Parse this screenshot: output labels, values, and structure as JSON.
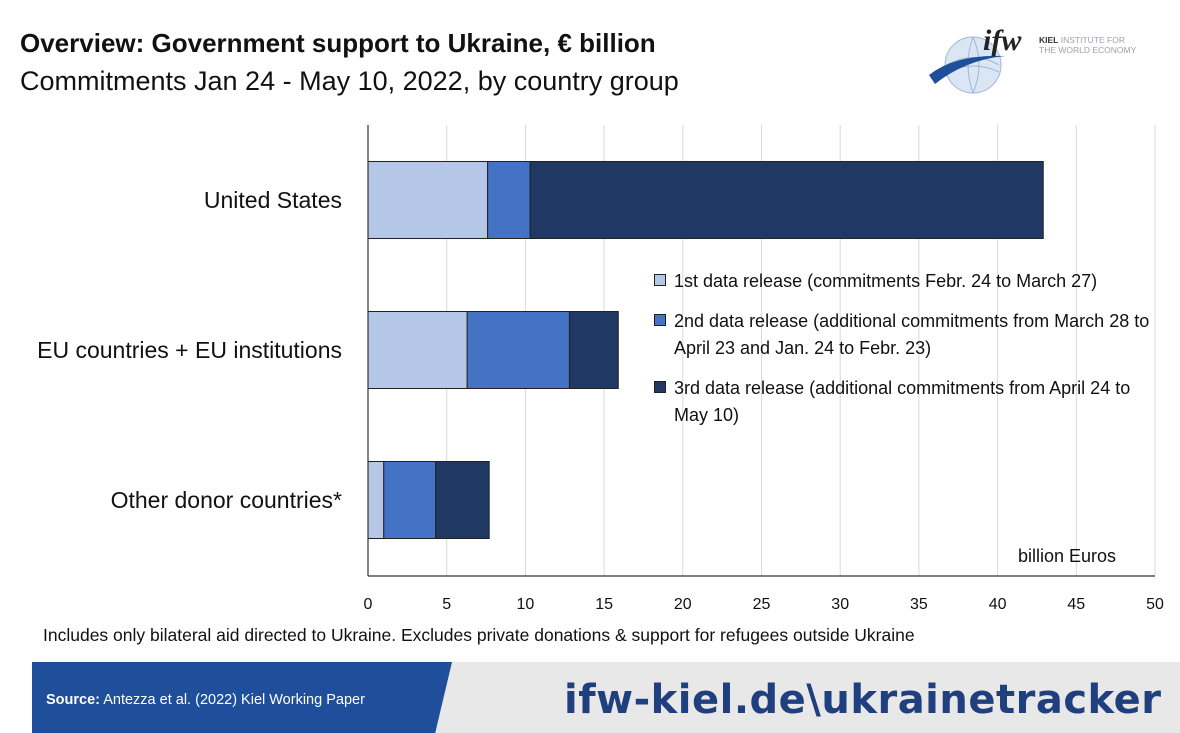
{
  "header": {
    "title": "Overview: Government support to Ukraine, € billion",
    "subtitle": "Commitments Jan 24 - May 10, 2022, by country group"
  },
  "logo": {
    "mark": "ifw",
    "line1": "KIEL INSTITUTE FOR",
    "line2": "THE WORLD ECONOMY",
    "line1_bold": "KIEL",
    "line1_rest": " INSTITUTE FOR"
  },
  "chart_data": {
    "type": "bar",
    "orientation": "horizontal",
    "stacked": true,
    "categories": [
      "United States",
      "EU countries + EU institutions",
      "Other donor countries*"
    ],
    "series": [
      {
        "name": "1st data release (commitments Febr. 24 to March 27)",
        "color": "#b4c7e7",
        "values": [
          7.6,
          6.3,
          1.0
        ]
      },
      {
        "name": "2nd data release (additional commitments from March 28 to April 23 and Jan. 24 to Febr. 23)",
        "color": "#4472c4",
        "values": [
          2.7,
          6.5,
          3.3
        ]
      },
      {
        "name": "3rd data release (additional commitments from April 24 to May 10)",
        "color": "#203864",
        "values": [
          32.6,
          3.1,
          3.4
        ]
      }
    ],
    "xlim": [
      0,
      50
    ],
    "xticks": [
      0,
      5,
      10,
      15,
      20,
      25,
      30,
      35,
      40,
      45,
      50
    ],
    "unit_label": "billion Euros",
    "grid": true,
    "legend_position": "right"
  },
  "footnote": "Includes only bilateral aid directed to Ukraine. Excludes private donations & support for refugees  outside Ukraine",
  "footer": {
    "source_label": "Source:",
    "source_text": " Antezza et al. (2022) Kiel Working Paper",
    "url": "ifw-kiel.de\\ukrainetracker"
  }
}
